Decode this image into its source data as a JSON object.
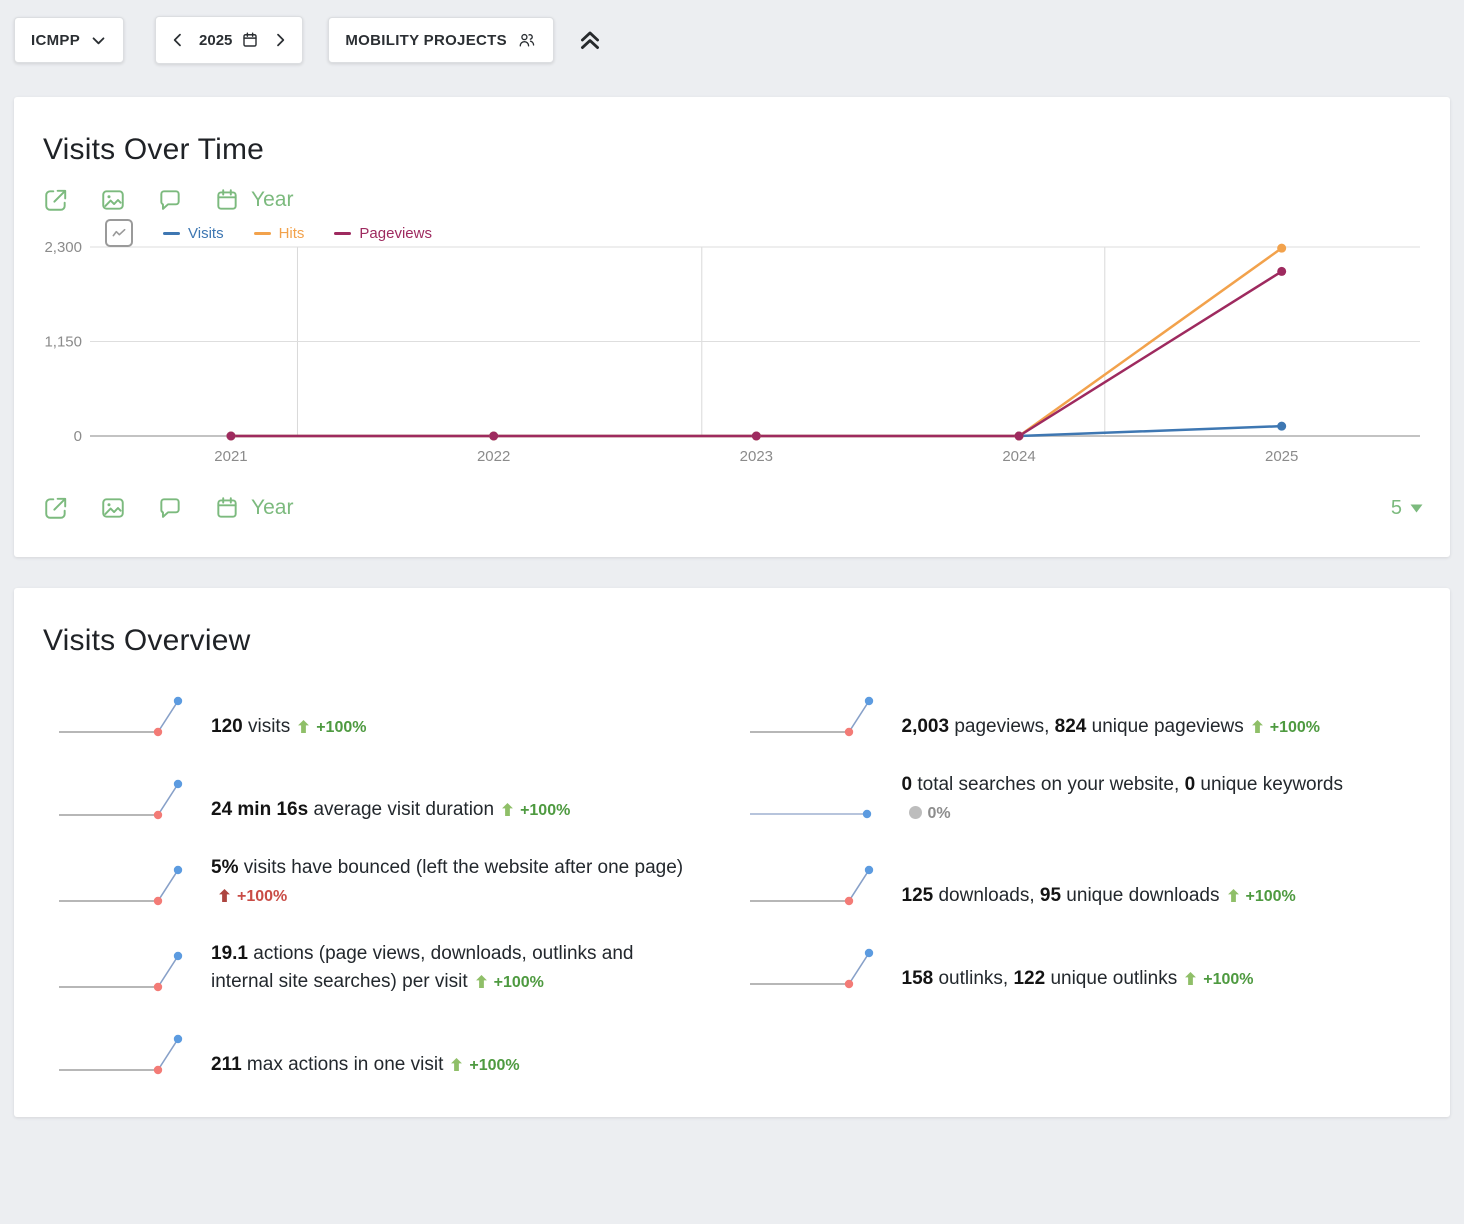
{
  "topbar": {
    "site_label": "ICMPP",
    "period_value": "2025",
    "segment_label": "MOBILITY PROJECTS"
  },
  "visits_over_time": {
    "title": "Visits Over Time",
    "period_label": "Year",
    "row_limit": "5"
  },
  "chart_data": {
    "type": "line",
    "title": "Visits Over Time",
    "x": [
      "2021",
      "2022",
      "2023",
      "2024",
      "2025"
    ],
    "series": [
      {
        "name": "Visits",
        "color": "#3e77b2",
        "values": [
          0,
          0,
          0,
          0,
          120
        ]
      },
      {
        "name": "Hits",
        "color": "#f2a24c",
        "values": [
          0,
          0,
          0,
          0,
          2286
        ]
      },
      {
        "name": "Pageviews",
        "color": "#9e2a5f",
        "values": [
          0,
          0,
          0,
          0,
          2003
        ]
      }
    ],
    "ylim": [
      0,
      2300
    ],
    "ytick_values": [
      0,
      1150,
      2300
    ],
    "ytick_labels": [
      "0",
      "1,150",
      "2,300"
    ],
    "grid": true,
    "legend_position": "top-left"
  },
  "visits_overview": {
    "title": "Visits Overview",
    "stats_left": [
      {
        "id": "visits",
        "sparkline": "rise",
        "parts": [
          {
            "t": "120",
            "b": true
          },
          {
            "t": " visits",
            "b": false
          }
        ],
        "trend": {
          "arrow": "up",
          "text": "+100%",
          "tone": "positive",
          "placement": "inline"
        }
      },
      {
        "id": "avg-visit-duration",
        "sparkline": "rise",
        "parts": [
          {
            "t": "24 min 16s",
            "b": true
          },
          {
            "t": " average visit duration",
            "b": false
          }
        ],
        "trend": {
          "arrow": "up",
          "text": "+100%",
          "tone": "positive",
          "placement": "inline"
        }
      },
      {
        "id": "bounce-rate",
        "sparkline": "rise",
        "parts": [
          {
            "t": "5%",
            "b": true
          },
          {
            "t": " visits have bounced (left the website after one page)",
            "b": false
          }
        ],
        "trend": {
          "arrow": "up",
          "text": "+100%",
          "tone": "negative",
          "placement": "newline"
        }
      },
      {
        "id": "actions-per-visit",
        "sparkline": "rise",
        "parts": [
          {
            "t": "19.1",
            "b": true
          },
          {
            "t": " actions (page views, downloads, outlinks and",
            "b": false
          },
          {
            "br": true
          },
          {
            "t": "internal site searches) per visit",
            "b": false
          }
        ],
        "trend": {
          "arrow": "up",
          "text": "+100%",
          "tone": "positive",
          "placement": "inline"
        }
      },
      {
        "id": "max-actions",
        "sparkline": "rise",
        "parts": [
          {
            "t": "211",
            "b": true
          },
          {
            "t": " max actions in one visit",
            "b": false
          }
        ],
        "trend": {
          "arrow": "up",
          "text": "+100%",
          "tone": "positive",
          "placement": "inline"
        }
      }
    ],
    "stats_right": [
      {
        "id": "pageviews",
        "sparkline": "rise",
        "parts": [
          {
            "t": "2,003",
            "b": true
          },
          {
            "t": " pageviews, ",
            "b": false
          },
          {
            "t": "824",
            "b": true
          },
          {
            "t": " unique pageviews",
            "b": false
          }
        ],
        "trend": {
          "arrow": "up",
          "text": "+100%",
          "tone": "positive",
          "placement": "inline"
        }
      },
      {
        "id": "site-searches",
        "sparkline": "flat",
        "parts": [
          {
            "t": "0",
            "b": true
          },
          {
            "t": " total searches on your website, ",
            "b": false
          },
          {
            "t": "0",
            "b": true
          },
          {
            "t": " unique keywords",
            "b": false
          }
        ],
        "trend": {
          "arrow": "dot",
          "text": "0%",
          "tone": "neutral",
          "placement": "newline"
        }
      },
      {
        "id": "downloads",
        "sparkline": "rise",
        "parts": [
          {
            "t": "125",
            "b": true
          },
          {
            "t": " downloads, ",
            "b": false
          },
          {
            "t": "95",
            "b": true
          },
          {
            "t": " unique downloads",
            "b": false
          }
        ],
        "trend": {
          "arrow": "up",
          "text": "+100%",
          "tone": "positive",
          "placement": "inline"
        }
      },
      {
        "id": "outlinks",
        "sparkline": "rise",
        "parts": [
          {
            "t": "158",
            "b": true
          },
          {
            "t": " outlinks, ",
            "b": false
          },
          {
            "t": "122",
            "b": true
          },
          {
            "t": " unique outlinks",
            "b": false
          }
        ],
        "trend": {
          "arrow": "up",
          "text": "+100%",
          "tone": "positive",
          "placement": "inline"
        }
      }
    ]
  },
  "icons": {
    "topbar": [
      "chevron-down-icon",
      "chevron-left-icon",
      "calendar-icon",
      "chevron-right-icon",
      "segment-users-icon",
      "collapse-all-icon"
    ],
    "chart_toolbar": [
      "export-icon",
      "image-export-icon",
      "annotations-icon",
      "calendar-icon"
    ],
    "legend": [
      "chart-type-selector-icon"
    ],
    "trend": [
      "arrow-up-icon",
      "dot-icon"
    ]
  },
  "colors": {
    "accent_green": "#7cba7e",
    "trend_positive_text": "#4e9a40",
    "trend_positive_arrow": "#8fbf68",
    "trend_negative_text": "#c94c46",
    "trend_negative_arrow": "#ad4540",
    "trend_neutral_text": "#8d8d8d",
    "sparkline_dot_start": "#f37b76",
    "sparkline_dot_end": "#5c9be0",
    "axis_label": "#8b8b8b"
  }
}
